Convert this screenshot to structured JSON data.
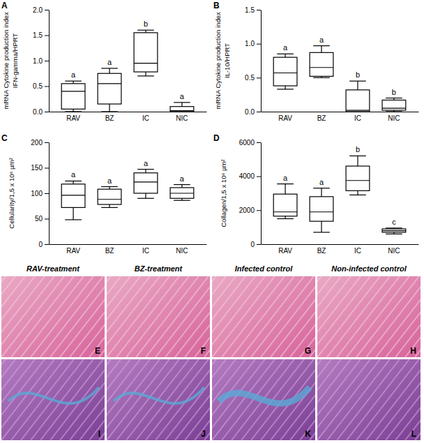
{
  "chart_data": [
    {
      "type": "box",
      "panel": "A",
      "y_label": [
        "mRNA Cytokine production index",
        "IFN-gamma/HPRT"
      ],
      "categories": [
        "RAV",
        "BZ",
        "IC",
        "NIC"
      ],
      "boxes": [
        {
          "min": 0.0,
          "q1": 0.05,
          "median": 0.4,
          "q3": 0.55,
          "max": 0.6
        },
        {
          "min": 0.0,
          "q1": 0.15,
          "median": 0.55,
          "q3": 0.75,
          "max": 0.85
        },
        {
          "min": 0.7,
          "q1": 0.78,
          "median": 0.95,
          "q3": 1.55,
          "max": 1.6
        },
        {
          "min": 0.0,
          "q1": 0.0,
          "median": 0.02,
          "q3": 0.1,
          "max": 0.18
        }
      ],
      "annotations": [
        "a",
        "a",
        "b",
        "a"
      ],
      "ylim": [
        0,
        2.0
      ],
      "yticks": [
        {
          "value": 0,
          "label": "0.0"
        },
        {
          "value": 0.5,
          "label": "0.5"
        },
        {
          "value": 1.0,
          "label": "1.0"
        },
        {
          "value": 1.5,
          "label": "1.5"
        },
        {
          "value": 2.0,
          "label": "2.0"
        }
      ]
    },
    {
      "type": "box",
      "panel": "B",
      "y_label": [
        "mRNA Cytokine production index",
        "IL-10/HPRT"
      ],
      "categories": [
        "RAV",
        "BZ",
        "IC",
        "NIC"
      ],
      "boxes": [
        {
          "min": 0.33,
          "q1": 0.38,
          "median": 0.57,
          "q3": 0.8,
          "max": 0.85
        },
        {
          "min": 0.5,
          "q1": 0.52,
          "median": 0.65,
          "q3": 0.87,
          "max": 0.97
        },
        {
          "min": 0.0,
          "q1": 0.0,
          "median": 0.02,
          "q3": 0.32,
          "max": 0.45
        },
        {
          "min": 0.0,
          "q1": 0.02,
          "median": 0.05,
          "q3": 0.17,
          "max": 0.2
        }
      ],
      "annotations": [
        "a",
        "a",
        "b",
        "b"
      ],
      "ylim": [
        0,
        1.5
      ],
      "yticks": [
        {
          "value": 0,
          "label": "0.0"
        },
        {
          "value": 0.5,
          "label": "0.5"
        },
        {
          "value": 1.0,
          "label": "1.0"
        },
        {
          "value": 1.5,
          "label": "1.5"
        }
      ]
    },
    {
      "type": "box",
      "panel": "C",
      "y_label": [
        "Cellularity/1,5 x 10⁶ µm²"
      ],
      "categories": [
        "RAV",
        "BZ",
        "IC",
        "NIC"
      ],
      "boxes": [
        {
          "min": 48,
          "q1": 72,
          "median": 96,
          "q3": 118,
          "max": 124
        },
        {
          "min": 72,
          "q1": 78,
          "median": 88,
          "q3": 108,
          "max": 113
        },
        {
          "min": 90,
          "q1": 100,
          "median": 122,
          "q3": 140,
          "max": 147
        },
        {
          "min": 86,
          "q1": 90,
          "median": 100,
          "q3": 111,
          "max": 117
        }
      ],
      "annotations": [
        "a",
        "a",
        "a",
        "a"
      ],
      "ylim": [
        0,
        200
      ],
      "yticks": [
        0,
        50,
        100,
        150,
        200
      ]
    },
    {
      "type": "box",
      "panel": "D",
      "y_label": [
        "Collagen/1,5 x 10⁶ µm²"
      ],
      "categories": [
        "RAV",
        "BZ",
        "IC",
        "NIC"
      ],
      "boxes": [
        {
          "min": 1500,
          "q1": 1650,
          "median": 1900,
          "q3": 2950,
          "max": 3550
        },
        {
          "min": 700,
          "q1": 1350,
          "median": 1900,
          "q3": 2800,
          "max": 3300
        },
        {
          "min": 2900,
          "q1": 3150,
          "median": 3750,
          "q3": 4600,
          "max": 5200
        },
        {
          "min": 600,
          "q1": 700,
          "median": 800,
          "q3": 900,
          "max": 950
        }
      ],
      "annotations": [
        "a",
        "a",
        "b",
        "c"
      ],
      "ylim": [
        0,
        6000
      ],
      "yticks": [
        0,
        2000,
        4000,
        6000
      ]
    }
  ],
  "histology": {
    "columns": [
      "RAV-treatment",
      "BZ-treatment",
      "Infected control",
      "Non-infected control"
    ],
    "panels": [
      [
        "E",
        "F",
        "G",
        "H"
      ],
      [
        "I",
        "J",
        "K",
        "L"
      ]
    ]
  }
}
